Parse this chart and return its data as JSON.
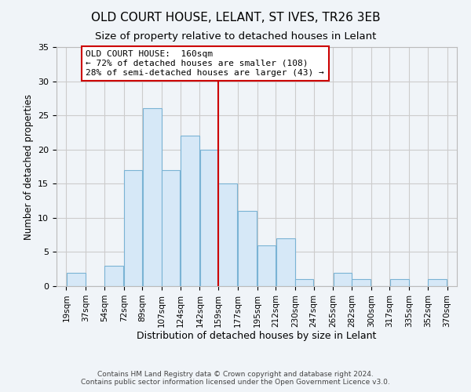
{
  "title": "OLD COURT HOUSE, LELANT, ST IVES, TR26 3EB",
  "subtitle": "Size of property relative to detached houses in Lelant",
  "xlabel": "Distribution of detached houses by size in Lelant",
  "ylabel": "Number of detached properties",
  "bin_edges": [
    19,
    37,
    54,
    72,
    89,
    107,
    124,
    142,
    159,
    177,
    195,
    212,
    230,
    247,
    265,
    282,
    300,
    317,
    335,
    352,
    370
  ],
  "bin_labels": [
    "19sqm",
    "37sqm",
    "54sqm",
    "72sqm",
    "89sqm",
    "107sqm",
    "124sqm",
    "142sqm",
    "159sqm",
    "177sqm",
    "195sqm",
    "212sqm",
    "230sqm",
    "247sqm",
    "265sqm",
    "282sqm",
    "300sqm",
    "317sqm",
    "335sqm",
    "352sqm",
    "370sqm"
  ],
  "counts": [
    2,
    0,
    3,
    17,
    26,
    17,
    22,
    20,
    15,
    11,
    6,
    7,
    1,
    0,
    2,
    1,
    0,
    1,
    0,
    1
  ],
  "bar_facecolor": "#d6e8f7",
  "bar_edgecolor": "#7ab3d4",
  "vline_x": 159,
  "vline_color": "#cc0000",
  "vline_lw": 1.5,
  "annotation_title": "OLD COURT HOUSE:  160sqm",
  "annotation_line1": "← 72% of detached houses are smaller (108)",
  "annotation_line2": "28% of semi-detached houses are larger (43) →",
  "annotation_box_edgecolor": "#cc0000",
  "annotation_box_facecolor": "#ffffff",
  "ylim": [
    0,
    35
  ],
  "yticks": [
    0,
    5,
    10,
    15,
    20,
    25,
    30,
    35
  ],
  "grid_color": "#cccccc",
  "background_color": "#f0f4f8",
  "footer1": "Contains HM Land Registry data © Crown copyright and database right 2024.",
  "footer2": "Contains public sector information licensed under the Open Government Licence v3.0.",
  "title_fontsize": 11,
  "subtitle_fontsize": 9.5,
  "xlabel_fontsize": 9,
  "ylabel_fontsize": 8.5,
  "footer_fontsize": 6.5,
  "tick_fontsize": 7.5,
  "ytick_fontsize": 8
}
